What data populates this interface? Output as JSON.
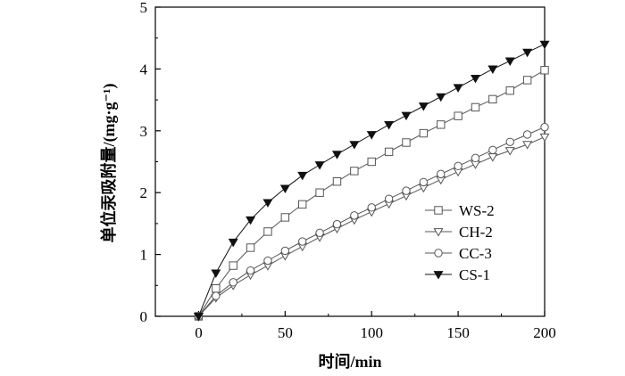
{
  "chart_data": {
    "type": "line",
    "xlabel": "时间/min",
    "ylabel": "单位汞吸附量/(mg·g⁻¹)",
    "xlim": [
      -25,
      200
    ],
    "ylim": [
      0,
      5
    ],
    "xticks": [
      0,
      50,
      100,
      150,
      200
    ],
    "yticks": [
      0,
      1,
      2,
      3,
      4,
      5
    ],
    "legend_position": "bottom-right",
    "series": [
      {
        "name": "WS-2",
        "marker": "open-square",
        "color": "#555555",
        "x": [
          0,
          10,
          20,
          30,
          40,
          50,
          60,
          70,
          80,
          90,
          100,
          110,
          120,
          130,
          140,
          150,
          160,
          170,
          180,
          190,
          200
        ],
        "values": [
          0,
          0.45,
          0.82,
          1.11,
          1.37,
          1.6,
          1.81,
          2.0,
          2.18,
          2.35,
          2.5,
          2.66,
          2.81,
          2.96,
          3.1,
          3.24,
          3.38,
          3.51,
          3.65,
          3.82,
          3.98
        ]
      },
      {
        "name": "CH-2",
        "marker": "open-triangle-down",
        "color": "#555555",
        "x": [
          0,
          10,
          20,
          30,
          40,
          50,
          60,
          70,
          80,
          90,
          100,
          110,
          120,
          130,
          140,
          150,
          160,
          170,
          180,
          190,
          200
        ],
        "values": [
          0,
          0.3,
          0.5,
          0.67,
          0.82,
          0.98,
          1.13,
          1.28,
          1.42,
          1.56,
          1.69,
          1.82,
          1.95,
          2.08,
          2.21,
          2.34,
          2.46,
          2.58,
          2.68,
          2.78,
          2.9
        ]
      },
      {
        "name": "CC-3",
        "marker": "open-circle",
        "color": "#555555",
        "x": [
          0,
          10,
          20,
          30,
          40,
          50,
          60,
          70,
          80,
          90,
          100,
          110,
          120,
          130,
          140,
          150,
          160,
          170,
          180,
          190,
          200
        ],
        "values": [
          0,
          0.33,
          0.55,
          0.74,
          0.9,
          1.06,
          1.21,
          1.35,
          1.49,
          1.63,
          1.76,
          1.9,
          2.03,
          2.17,
          2.3,
          2.43,
          2.56,
          2.69,
          2.82,
          2.94,
          3.06
        ]
      },
      {
        "name": "CS-1",
        "marker": "filled-triangle-down",
        "color": "#111111",
        "x": [
          0,
          10,
          20,
          30,
          40,
          50,
          60,
          70,
          80,
          90,
          100,
          110,
          120,
          130,
          140,
          150,
          160,
          170,
          180,
          190,
          200
        ],
        "values": [
          0,
          0.7,
          1.2,
          1.56,
          1.84,
          2.07,
          2.28,
          2.45,
          2.62,
          2.78,
          2.94,
          3.1,
          3.25,
          3.4,
          3.55,
          3.7,
          3.85,
          4.0,
          4.13,
          4.27,
          4.4
        ]
      }
    ]
  }
}
